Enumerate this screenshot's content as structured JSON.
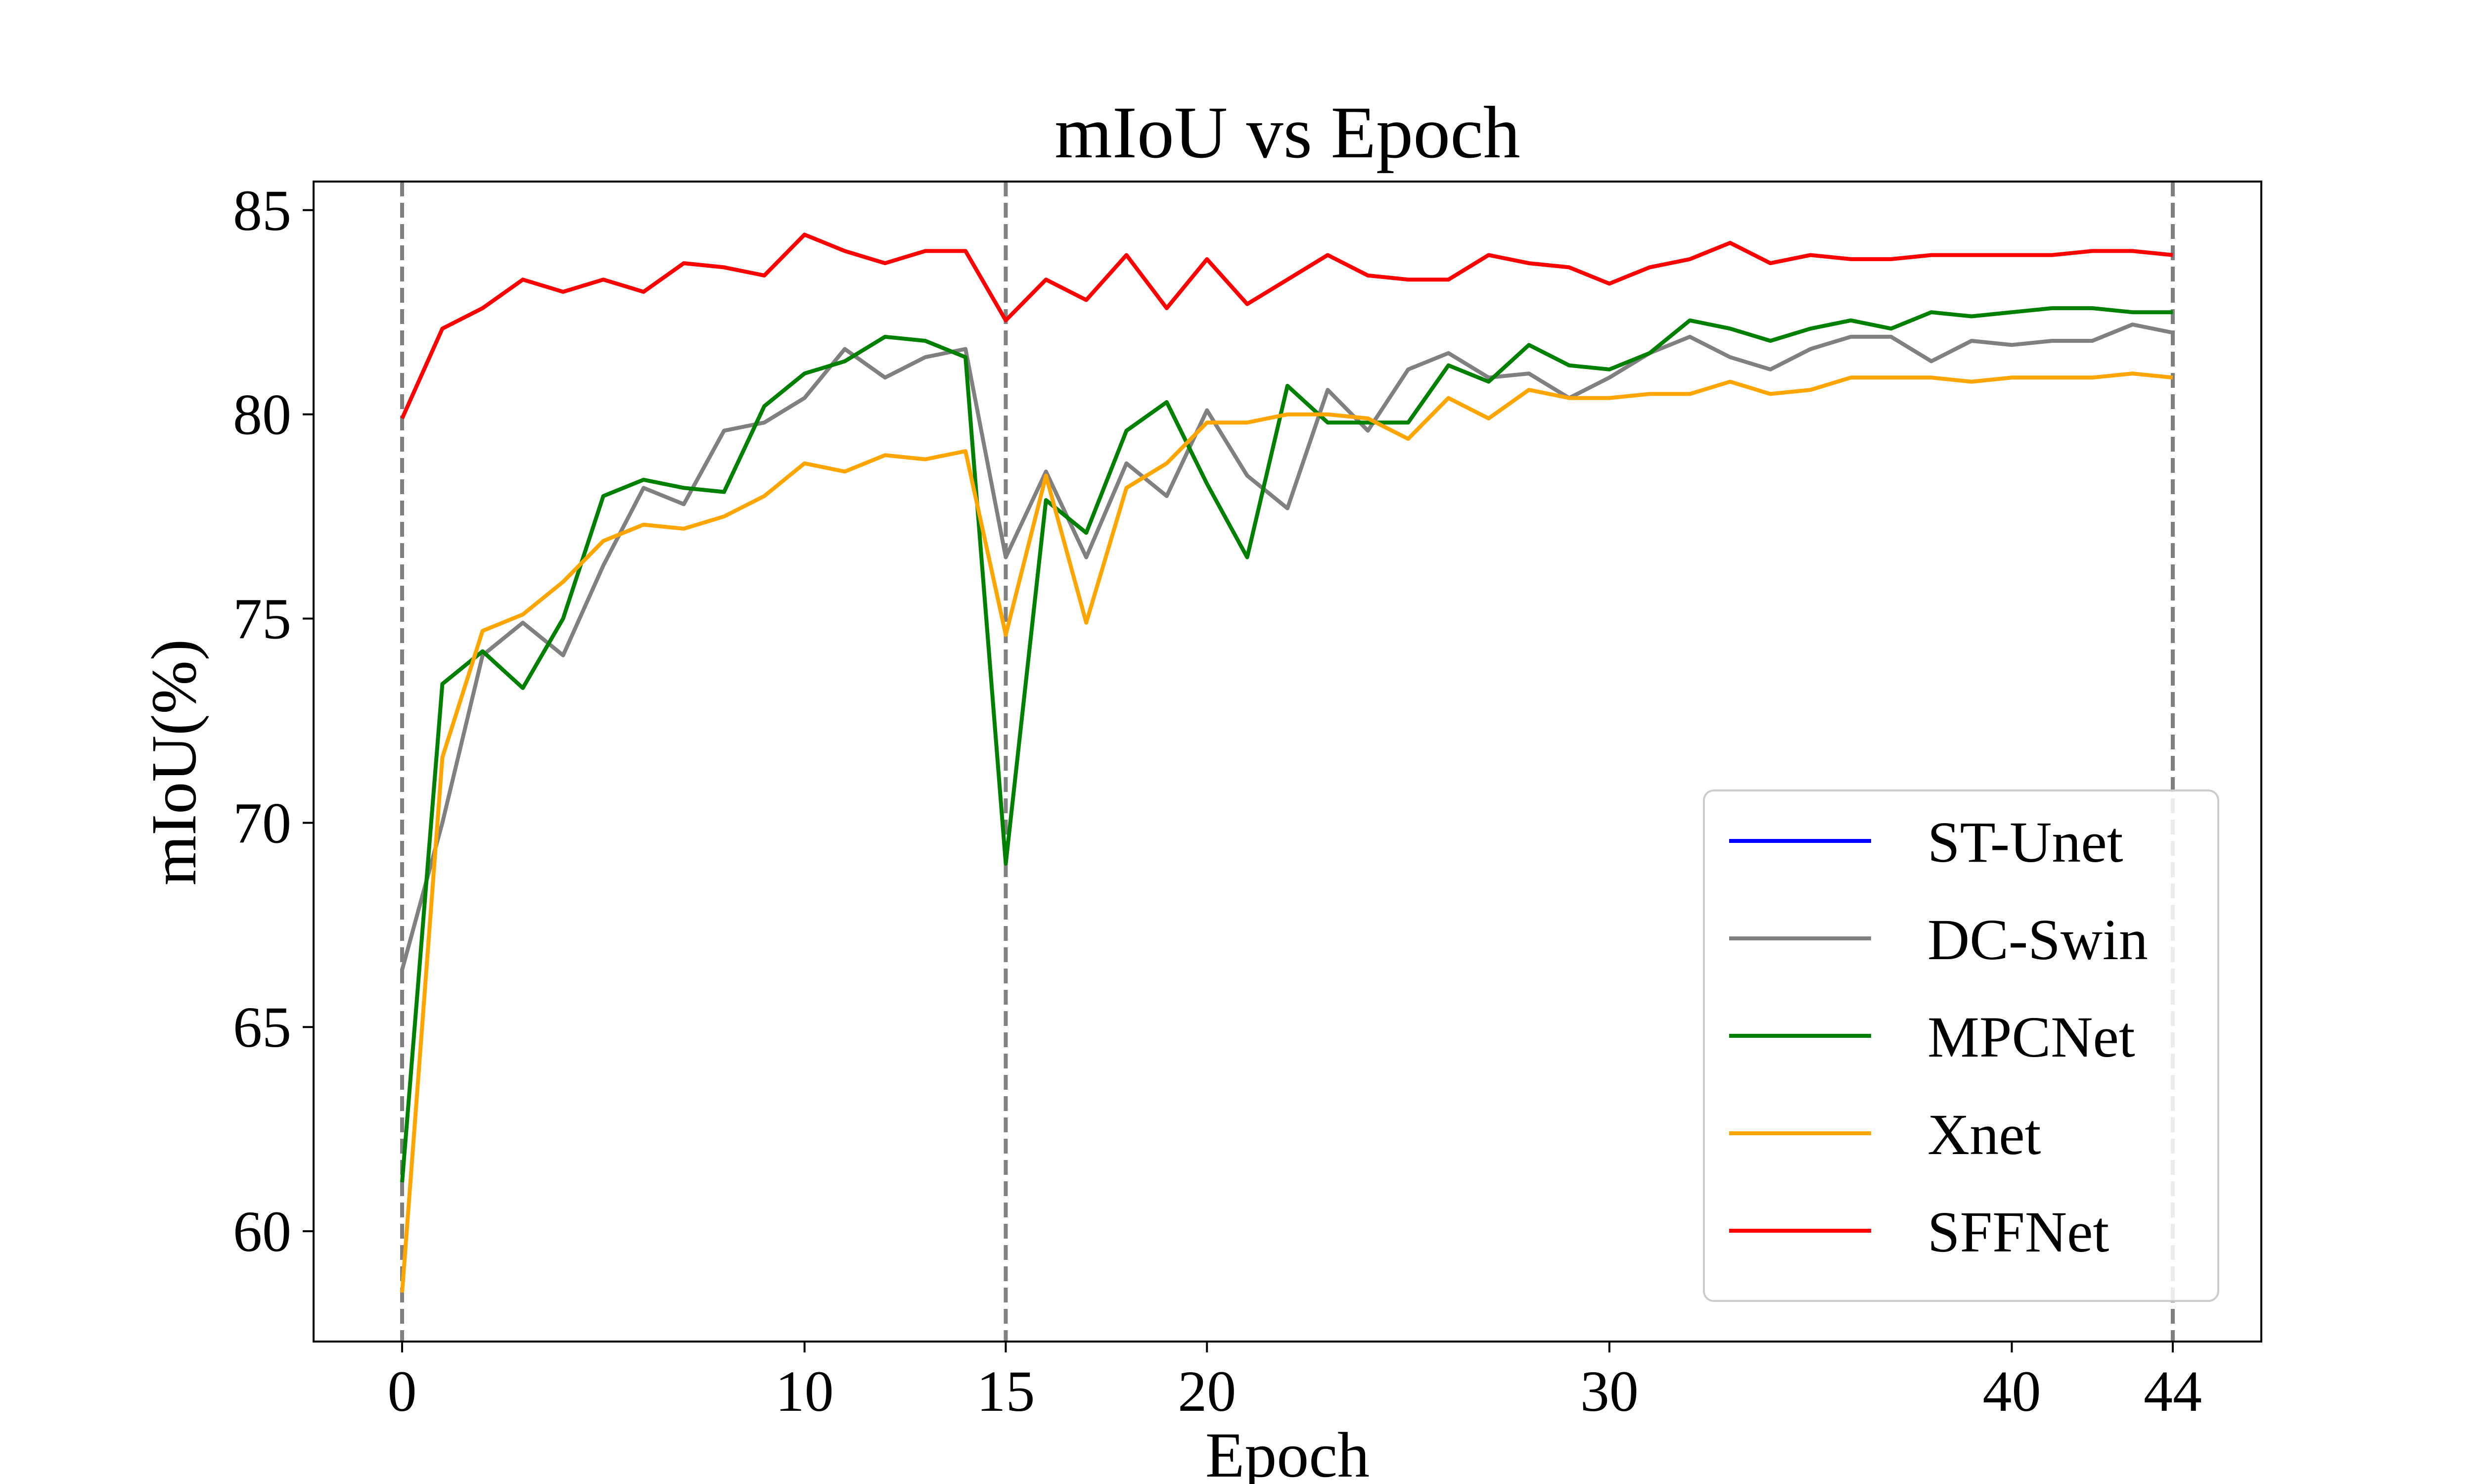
{
  "chart_data": {
    "type": "line",
    "title": "mIoU vs Epoch",
    "xlabel": "Epoch",
    "ylabel": "mIoU(%)",
    "xlim": [
      -2.2,
      46.2
    ],
    "ylim": [
      57.3,
      85.7
    ],
    "xticks": [
      0,
      10,
      15,
      20,
      30,
      40,
      44
    ],
    "yticks": [
      60,
      65,
      70,
      75,
      80,
      85
    ],
    "vlines": [
      0,
      15,
      44
    ],
    "legend_position": "lower-right",
    "grid": false,
    "series": [
      {
        "name": "ST-Unet",
        "color": "#0000ff",
        "values": []
      },
      {
        "name": "DC-Swin",
        "color": "#808080",
        "values": [
          66.4,
          70.0,
          74.1,
          74.9,
          74.1,
          76.3,
          78.2,
          77.8,
          79.6,
          79.8,
          80.4,
          81.6,
          80.9,
          81.4,
          81.6,
          76.5,
          78.6,
          76.5,
          78.8,
          78.0,
          80.1,
          78.5,
          77.7,
          80.6,
          79.6,
          81.1,
          81.5,
          80.9,
          81.0,
          80.4,
          80.9,
          81.5,
          81.9,
          81.4,
          81.1,
          81.6,
          81.9,
          81.9,
          81.3,
          81.8,
          81.7,
          81.8,
          81.8,
          82.2,
          82.0
        ]
      },
      {
        "name": "MPCNet",
        "color": "#008000",
        "values": [
          61.2,
          73.4,
          74.2,
          73.3,
          75.0,
          78.0,
          78.4,
          78.2,
          78.1,
          80.2,
          81.0,
          81.3,
          81.9,
          81.8,
          81.4,
          69.0,
          77.9,
          77.1,
          79.6,
          80.3,
          78.3,
          76.5,
          80.7,
          79.8,
          79.8,
          79.8,
          81.2,
          80.8,
          81.7,
          81.2,
          81.1,
          81.5,
          82.3,
          82.1,
          81.8,
          82.1,
          82.3,
          82.1,
          82.5,
          82.4,
          82.5,
          82.6,
          82.6,
          82.5,
          82.5
        ]
      },
      {
        "name": "Xnet",
        "color": "#ffa500",
        "values": [
          58.5,
          71.6,
          74.7,
          75.1,
          75.9,
          76.9,
          77.3,
          77.2,
          77.5,
          78.0,
          78.8,
          78.6,
          79.0,
          78.9,
          79.1,
          74.6,
          78.5,
          74.9,
          78.2,
          78.8,
          79.8,
          79.8,
          80.0,
          80.0,
          79.9,
          79.4,
          80.4,
          79.9,
          80.6,
          80.4,
          80.4,
          80.5,
          80.5,
          80.8,
          80.5,
          80.6,
          80.9,
          80.9,
          80.9,
          80.8,
          80.9,
          80.9,
          80.9,
          81.0,
          80.9
        ]
      },
      {
        "name": "SFFNet",
        "color": "#ff0000",
        "values": [
          79.9,
          82.1,
          82.6,
          83.3,
          83.0,
          83.3,
          83.0,
          83.7,
          83.6,
          83.4,
          84.4,
          84.0,
          83.7,
          84.0,
          84.0,
          82.3,
          83.3,
          82.8,
          83.9,
          82.6,
          83.8,
          82.7,
          83.3,
          83.9,
          83.4,
          83.3,
          83.3,
          83.9,
          83.7,
          83.6,
          83.2,
          83.6,
          83.8,
          84.2,
          83.7,
          83.9,
          83.8,
          83.8,
          83.9,
          83.9,
          83.9,
          83.9,
          84.0,
          84.0,
          83.9
        ]
      }
    ]
  }
}
